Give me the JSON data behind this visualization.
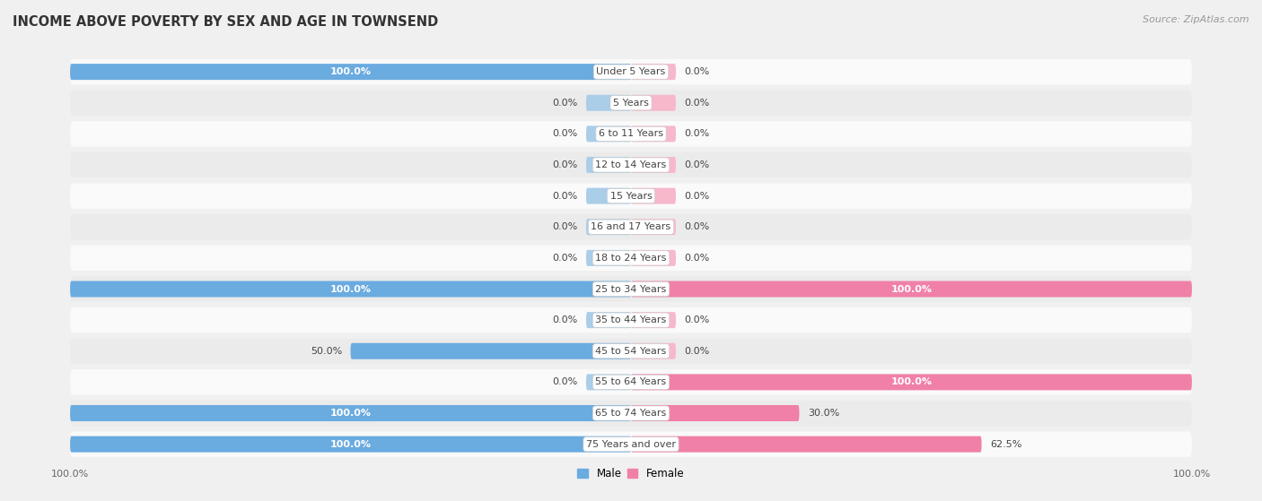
{
  "title": "INCOME ABOVE POVERTY BY SEX AND AGE IN TOWNSEND",
  "source": "Source: ZipAtlas.com",
  "categories": [
    "Under 5 Years",
    "5 Years",
    "6 to 11 Years",
    "12 to 14 Years",
    "15 Years",
    "16 and 17 Years",
    "18 to 24 Years",
    "25 to 34 Years",
    "35 to 44 Years",
    "45 to 54 Years",
    "55 to 64 Years",
    "65 to 74 Years",
    "75 Years and over"
  ],
  "male_values": [
    100.0,
    0.0,
    0.0,
    0.0,
    0.0,
    0.0,
    0.0,
    100.0,
    0.0,
    50.0,
    0.0,
    100.0,
    100.0
  ],
  "female_values": [
    0.0,
    0.0,
    0.0,
    0.0,
    0.0,
    0.0,
    0.0,
    100.0,
    0.0,
    0.0,
    100.0,
    30.0,
    62.5
  ],
  "male_color": "#6aabe0",
  "female_color": "#f080a8",
  "male_stub_color": "#aacde8",
  "female_stub_color": "#f7b8cc",
  "bg_color": "#f0f0f0",
  "row_light_color": "#fafafa",
  "row_dark_color": "#ebebeb",
  "center_label_bg": "#ffffff",
  "white_text": "#ffffff",
  "dark_text": "#444444",
  "source_text": "#999999",
  "max_value": 100.0,
  "stub_value": 8.0,
  "title_fontsize": 10.5,
  "label_fontsize": 8.0,
  "cat_fontsize": 8.0,
  "tick_fontsize": 8.0,
  "source_fontsize": 8.0,
  "legend_fontsize": 8.5
}
